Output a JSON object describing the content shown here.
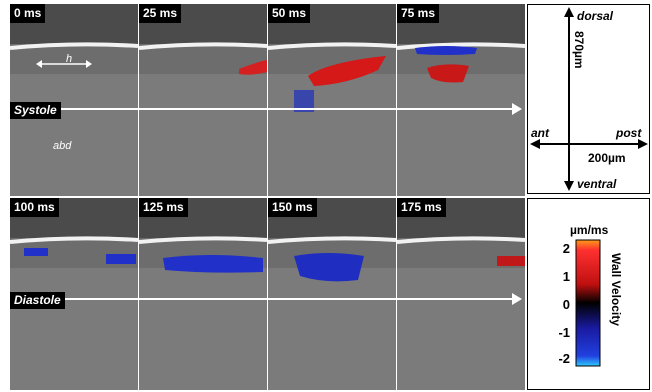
{
  "frames_top": [
    "0 ms",
    "25 ms",
    "50 ms",
    "75 ms"
  ],
  "frames_bottom": [
    "100 ms",
    "125 ms",
    "150 ms",
    "175 ms"
  ],
  "phase_top": "Systole",
  "phase_bottom": "Diastole",
  "in_frame": {
    "h": "h",
    "abd": "abd"
  },
  "orientation": {
    "dorsal": "dorsal",
    "ventral": "ventral",
    "ant": "ant",
    "post": "post",
    "scale_vertical": "870µm",
    "scale_horizontal": "200µm"
  },
  "colorbar": {
    "unit": "µm/ms",
    "label": "Wall Velocity",
    "ticks": [
      "2",
      "1",
      "0",
      "-1",
      "-2"
    ],
    "colors": {
      "top": "#ff9a1a",
      "red": "#e11010",
      "zero": "#000000",
      "blue": "#1020d0",
      "bottom": "#30c8ff"
    }
  }
}
